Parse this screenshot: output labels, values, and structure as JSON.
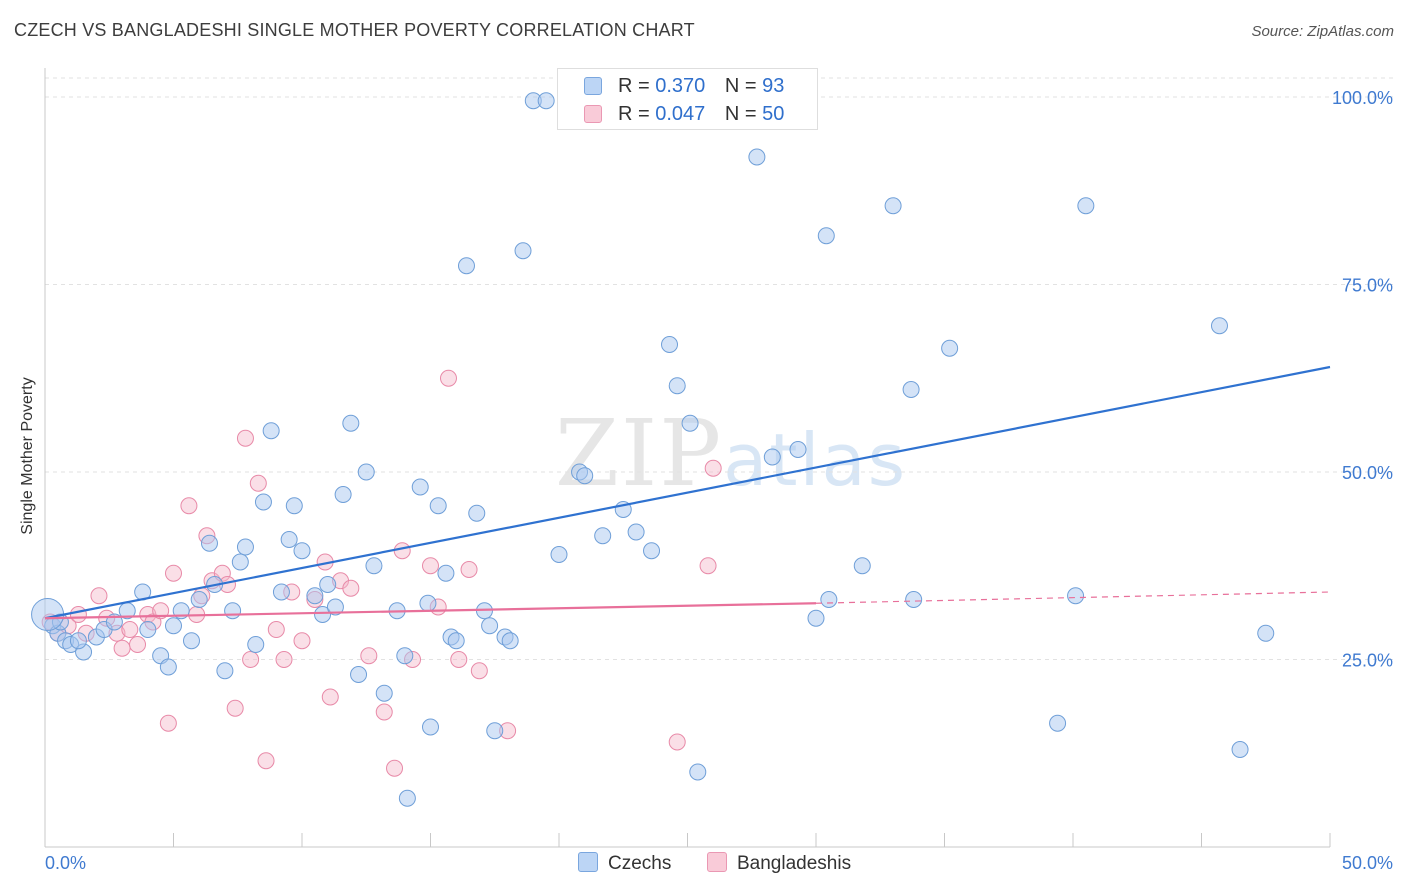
{
  "header": {
    "title": "CZECH VS BANGLADESHI SINGLE MOTHER POVERTY CORRELATION CHART",
    "source": "Source: ZipAtlas.com"
  },
  "watermark": {
    "zip": "ZIP",
    "atlas": "atlas"
  },
  "legend_top": {
    "rows": [
      {
        "r_label": "R = ",
        "r_value": "0.370",
        "n_label": "N = ",
        "n_value": "93",
        "color": "#a9c8f0"
      },
      {
        "r_label": "R = ",
        "r_value": "0.047",
        "n_label": "N = ",
        "n_value": "50",
        "color": "#f5b8ca"
      }
    ]
  },
  "legend_bottom": {
    "items": [
      {
        "label": "Czechs",
        "color": "#a9c8f0"
      },
      {
        "label": "Bangladeshis",
        "color": "#f5b8ca"
      }
    ]
  },
  "colors": {
    "blue_fill": "#a9c8f0",
    "blue_stroke": "#6f9fd8",
    "blue_line": "#2f72d0",
    "pink_fill": "#f5b8ca",
    "pink_stroke": "#e88aa8",
    "pink_line": "#e8709a",
    "tick_text": "#3f7ad0",
    "grid": "#e2e2e2"
  },
  "chart_data": {
    "type": "scatter",
    "title": "CZECH VS BANGLADESHI SINGLE MOTHER POVERTY CORRELATION CHART",
    "xlabel": "",
    "ylabel": "Single Mother Poverty",
    "xlim": [
      0,
      50
    ],
    "ylim": [
      0,
      102
    ],
    "x_tick_labels": [
      "0.0%",
      "50.0%"
    ],
    "y_ticks": [
      25,
      50,
      75,
      100
    ],
    "y_tick_labels": [
      "25.0%",
      "50.0%",
      "75.0%",
      "100.0%"
    ],
    "grid": true,
    "legend_position": "top-center",
    "series": [
      {
        "name": "Czechs",
        "color": "#a9c8f0",
        "r": 0.37,
        "n": 93,
        "trend": {
          "x": [
            0,
            50
          ],
          "y": [
            30.5,
            64.0
          ],
          "style": "solid"
        },
        "points": [
          [
            0.3,
            29.5
          ],
          [
            0.5,
            28.5
          ],
          [
            0.8,
            27.5
          ],
          [
            0.6,
            30.0
          ],
          [
            1.0,
            27.0
          ],
          [
            1.5,
            26.0
          ],
          [
            1.3,
            27.5
          ],
          [
            2.0,
            28.0
          ],
          [
            2.3,
            29.0
          ],
          [
            2.7,
            30.0
          ],
          [
            3.2,
            31.5
          ],
          [
            3.8,
            34.0
          ],
          [
            4.0,
            29.0
          ],
          [
            4.5,
            25.5
          ],
          [
            4.8,
            24.0
          ],
          [
            5.0,
            29.5
          ],
          [
            5.3,
            31.5
          ],
          [
            5.7,
            27.5
          ],
          [
            6.0,
            33.0
          ],
          [
            6.4,
            40.5
          ],
          [
            6.6,
            35.0
          ],
          [
            7.0,
            23.5
          ],
          [
            7.3,
            31.5
          ],
          [
            7.6,
            38.0
          ],
          [
            7.8,
            40.0
          ],
          [
            8.2,
            27.0
          ],
          [
            8.5,
            46.0
          ],
          [
            8.8,
            55.5
          ],
          [
            9.2,
            34.0
          ],
          [
            9.5,
            41.0
          ],
          [
            9.7,
            45.5
          ],
          [
            10.0,
            39.5
          ],
          [
            10.5,
            33.5
          ],
          [
            10.8,
            31.0
          ],
          [
            11.0,
            35.0
          ],
          [
            11.3,
            32.0
          ],
          [
            11.6,
            47.0
          ],
          [
            11.9,
            56.5
          ],
          [
            12.2,
            23.0
          ],
          [
            12.5,
            50.0
          ],
          [
            12.8,
            37.5
          ],
          [
            13.2,
            20.5
          ],
          [
            13.7,
            31.5
          ],
          [
            14.0,
            25.5
          ],
          [
            14.1,
            6.5
          ],
          [
            14.6,
            48.0
          ],
          [
            14.9,
            32.5
          ],
          [
            15.0,
            16.0
          ],
          [
            15.3,
            45.5
          ],
          [
            15.6,
            36.5
          ],
          [
            15.8,
            28.0
          ],
          [
            16.0,
            27.5
          ],
          [
            16.4,
            77.5
          ],
          [
            16.8,
            44.5
          ],
          [
            17.1,
            31.5
          ],
          [
            17.3,
            29.5
          ],
          [
            17.5,
            15.5
          ],
          [
            17.9,
            28.0
          ],
          [
            18.1,
            27.5
          ],
          [
            18.6,
            79.5
          ],
          [
            19.0,
            99.5
          ],
          [
            19.5,
            99.5
          ],
          [
            20.0,
            39.0
          ],
          [
            20.8,
            50.0
          ],
          [
            21.0,
            49.5
          ],
          [
            21.7,
            41.5
          ],
          [
            22.5,
            45.0
          ],
          [
            23.0,
            42.0
          ],
          [
            23.6,
            39.5
          ],
          [
            24.0,
            99.5
          ],
          [
            24.3,
            67.0
          ],
          [
            24.6,
            61.5
          ],
          [
            25.1,
            56.5
          ],
          [
            25.4,
            10.0
          ],
          [
            26.5,
            99.0
          ],
          [
            27.7,
            92.0
          ],
          [
            28.3,
            52.0
          ],
          [
            29.3,
            53.0
          ],
          [
            30.0,
            30.5
          ],
          [
            30.4,
            81.5
          ],
          [
            30.5,
            33.0
          ],
          [
            31.8,
            37.5
          ],
          [
            33.0,
            85.5
          ],
          [
            33.7,
            61.0
          ],
          [
            33.8,
            33.0
          ],
          [
            35.2,
            66.5
          ],
          [
            39.4,
            16.5
          ],
          [
            40.1,
            33.5
          ],
          [
            40.5,
            85.5
          ],
          [
            45.7,
            69.5
          ],
          [
            46.5,
            13.0
          ],
          [
            47.5,
            28.5
          ],
          [
            0.1,
            31.0
          ]
        ]
      },
      {
        "name": "Bangladeshis",
        "color": "#f5b8ca",
        "r": 0.047,
        "n": 50,
        "trend": {
          "x": [
            0,
            30
          ],
          "y": [
            30.5,
            32.5
          ],
          "style": "solid",
          "extension": {
            "x": [
              30,
              50
            ],
            "y": [
              32.5,
              34.0
            ],
            "style": "dashed"
          }
        },
        "points": [
          [
            0.2,
            30.0
          ],
          [
            0.5,
            28.5
          ],
          [
            0.9,
            29.5
          ],
          [
            1.3,
            31.0
          ],
          [
            1.6,
            28.5
          ],
          [
            2.1,
            33.5
          ],
          [
            2.4,
            30.5
          ],
          [
            2.8,
            28.5
          ],
          [
            3.0,
            26.5
          ],
          [
            3.3,
            29.0
          ],
          [
            3.6,
            27.0
          ],
          [
            4.0,
            31.0
          ],
          [
            4.2,
            30.0
          ],
          [
            4.5,
            31.5
          ],
          [
            4.8,
            16.5
          ],
          [
            5.0,
            36.5
          ],
          [
            5.6,
            45.5
          ],
          [
            5.9,
            31.0
          ],
          [
            6.1,
            33.5
          ],
          [
            6.3,
            41.5
          ],
          [
            6.5,
            35.5
          ],
          [
            6.9,
            36.5
          ],
          [
            7.1,
            35.0
          ],
          [
            7.4,
            18.5
          ],
          [
            7.8,
            54.5
          ],
          [
            8.0,
            25.0
          ],
          [
            8.3,
            48.5
          ],
          [
            8.6,
            11.5
          ],
          [
            9.0,
            29.0
          ],
          [
            9.3,
            25.0
          ],
          [
            9.6,
            34.0
          ],
          [
            10.0,
            27.5
          ],
          [
            10.5,
            33.0
          ],
          [
            10.9,
            38.0
          ],
          [
            11.1,
            20.0
          ],
          [
            11.5,
            35.5
          ],
          [
            11.9,
            34.5
          ],
          [
            12.6,
            25.5
          ],
          [
            13.2,
            18.0
          ],
          [
            13.6,
            10.5
          ],
          [
            13.9,
            39.5
          ],
          [
            14.3,
            25.0
          ],
          [
            15.0,
            37.5
          ],
          [
            15.3,
            32.0
          ],
          [
            15.7,
            62.5
          ],
          [
            16.1,
            25.0
          ],
          [
            16.5,
            37.0
          ],
          [
            16.9,
            23.5
          ],
          [
            18.0,
            15.5
          ],
          [
            25.8,
            37.5
          ]
        ],
        "extra_points": [
          [
            24.6,
            14.0
          ],
          [
            26.0,
            50.5
          ]
        ]
      }
    ]
  }
}
